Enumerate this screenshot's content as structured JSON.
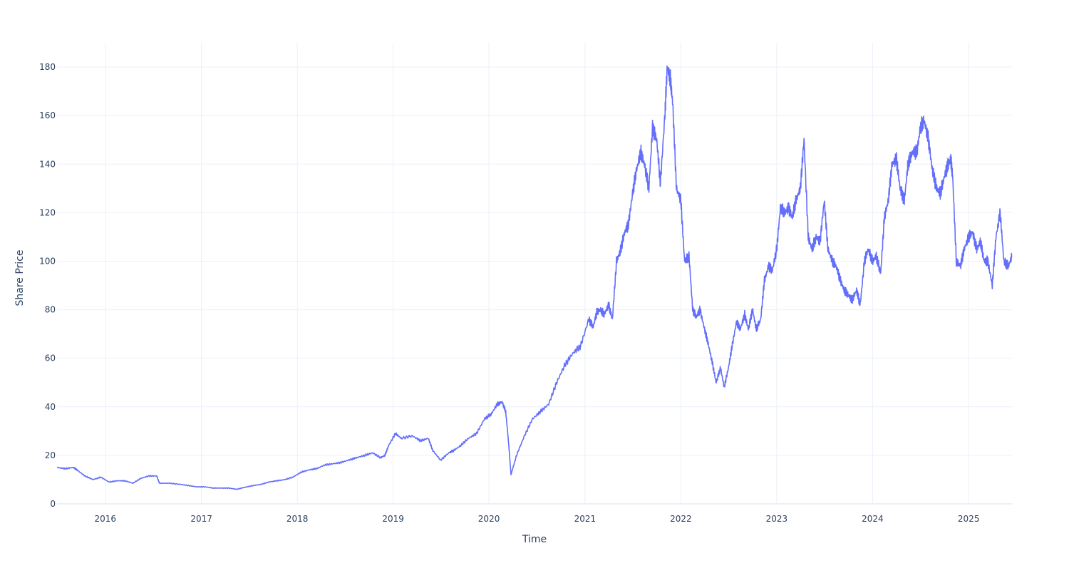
{
  "chart_data": {
    "type": "line",
    "title": "",
    "xlabel": "Time",
    "ylabel": "Share Price",
    "x_tick_labels": [
      "2016",
      "2017",
      "2018",
      "2019",
      "2020",
      "2021",
      "2022",
      "2023",
      "2024",
      "2025"
    ],
    "y_tick_labels": [
      "0",
      "20",
      "40",
      "60",
      "80",
      "100",
      "120",
      "140",
      "160",
      "180"
    ],
    "x_range": [
      "2015-07-01",
      "2025-06-15"
    ],
    "y_range": [
      -0.3,
      190
    ],
    "grid": true,
    "legend": "none",
    "colors": {
      "line": "#636efa",
      "grid": "#ebf0f8",
      "text": "#2a3f5f",
      "zeroline": "#ebf0f8"
    },
    "series": [
      {
        "x": [
          "2015-07-01",
          "2015-08-01",
          "2015-09-01",
          "2015-09-15",
          "2015-10-15",
          "2015-11-15",
          "2015-12-15",
          "2016-01-15",
          "2016-02-15",
          "2016-03-15",
          "2016-04-15",
          "2016-05-15",
          "2016-06-15",
          "2016-07-15",
          "2016-07-25",
          "2016-09-01",
          "2016-10-15",
          "2016-11-15",
          "2016-12-15",
          "2017-01-15",
          "2017-02-15",
          "2017-03-15",
          "2017-04-15",
          "2017-05-15",
          "2017-06-15",
          "2017-07-15",
          "2017-08-15",
          "2017-09-15",
          "2017-10-15",
          "2017-11-15",
          "2017-12-15",
          "2018-01-15",
          "2018-02-15",
          "2018-03-15",
          "2018-04-15",
          "2018-05-15",
          "2018-06-15",
          "2018-07-15",
          "2018-08-15",
          "2018-09-15",
          "2018-10-15",
          "2018-11-15",
          "2018-12-01",
          "2018-12-15",
          "2019-01-10",
          "2019-02-01",
          "2019-03-15",
          "2019-04-15",
          "2019-05-15",
          "2019-06-01",
          "2019-07-01",
          "2019-08-01",
          "2019-08-20",
          "2019-09-15",
          "2019-10-15",
          "2019-11-15",
          "2019-12-15",
          "2020-01-10",
          "2020-02-01",
          "2020-02-20",
          "2020-03-05",
          "2020-03-16",
          "2020-03-25",
          "2020-04-15",
          "2020-05-15",
          "2020-06-15",
          "2020-07-15",
          "2020-08-15",
          "2020-09-15",
          "2020-10-15",
          "2020-11-15",
          "2020-12-15",
          "2021-01-15",
          "2021-02-01",
          "2021-02-15",
          "2021-03-01",
          "2021-03-15",
          "2021-04-01",
          "2021-04-15",
          "2021-05-01",
          "2021-05-15",
          "2021-06-01",
          "2021-06-15",
          "2021-07-01",
          "2021-07-15",
          "2021-08-01",
          "2021-08-15",
          "2021-09-01",
          "2021-09-15",
          "2021-10-01",
          "2021-10-15",
          "2021-11-01",
          "2021-11-10",
          "2021-11-22",
          "2021-12-01",
          "2021-12-15",
          "2022-01-01",
          "2022-01-15",
          "2022-02-01",
          "2022-02-15",
          "2022-03-01",
          "2022-03-15",
          "2022-04-01",
          "2022-04-15",
          "2022-05-01",
          "2022-05-15",
          "2022-06-01",
          "2022-06-15",
          "2022-07-01",
          "2022-07-15",
          "2022-08-01",
          "2022-08-15",
          "2022-09-01",
          "2022-09-15",
          "2022-10-01",
          "2022-10-15",
          "2022-11-01",
          "2022-11-15",
          "2022-12-01",
          "2022-12-15",
          "2023-01-01",
          "2023-01-15",
          "2023-02-01",
          "2023-02-15",
          "2023-03-01",
          "2023-03-15",
          "2023-04-01",
          "2023-04-15",
          "2023-05-01",
          "2023-05-15",
          "2023-06-01",
          "2023-06-15",
          "2023-07-01",
          "2023-07-15",
          "2023-08-01",
          "2023-08-15",
          "2023-09-01",
          "2023-09-15",
          "2023-10-01",
          "2023-10-15",
          "2023-11-01",
          "2023-11-15",
          "2023-12-01",
          "2023-12-15",
          "2024-01-01",
          "2024-01-15",
          "2024-02-01",
          "2024-02-15",
          "2024-03-01",
          "2024-03-15",
          "2024-04-01",
          "2024-04-15",
          "2024-05-01",
          "2024-05-15",
          "2024-06-01",
          "2024-06-18",
          "2024-07-01",
          "2024-07-15",
          "2024-08-01",
          "2024-08-15",
          "2024-09-01",
          "2024-09-15",
          "2024-10-01",
          "2024-10-15",
          "2024-10-25",
          "2024-11-01",
          "2024-11-15",
          "2024-12-01",
          "2024-12-15",
          "2025-01-01",
          "2025-01-15",
          "2025-02-01",
          "2025-02-15",
          "2025-03-01",
          "2025-03-15",
          "2025-04-01",
          "2025-04-15",
          "2025-05-01",
          "2025-05-15",
          "2025-06-01",
          "2025-06-15"
        ],
        "y": [
          15,
          14.5,
          15,
          14,
          11.5,
          10,
          11,
          9,
          9.5,
          9.5,
          8.5,
          10.5,
          11.5,
          11.5,
          8.5,
          8.5,
          8,
          7.5,
          7,
          7,
          6.5,
          6.5,
          6.5,
          6,
          6.8,
          7.5,
          8,
          9,
          9.5,
          10,
          11,
          13,
          14,
          14.5,
          16,
          16.5,
          17,
          18,
          19,
          20,
          21,
          19,
          20,
          24,
          29,
          27,
          28,
          26,
          27,
          22,
          18,
          21,
          22,
          24,
          27,
          29,
          35,
          37,
          41,
          42,
          38,
          25,
          12,
          20,
          28,
          35,
          38,
          41,
          50,
          57,
          62,
          65,
          76,
          73,
          79,
          80,
          78,
          82,
          76,
          100,
          104,
          112,
          115,
          128,
          137,
          145,
          140,
          130,
          155,
          150,
          132,
          160,
          180,
          175,
          165,
          130,
          125,
          100,
          102,
          80,
          77,
          80,
          72,
          66,
          58,
          50,
          56,
          48,
          56,
          65,
          75,
          72,
          78,
          72,
          80,
          72,
          76,
          92,
          98,
          96,
          105,
          122,
          120,
          122,
          118,
          125,
          130,
          150,
          110,
          105,
          110,
          108,
          125,
          105,
          100,
          98,
          92,
          88,
          86,
          84,
          88,
          82,
          100,
          105,
          100,
          102,
          95,
          118,
          125,
          140,
          142,
          130,
          125,
          140,
          145,
          145,
          155,
          158,
          150,
          138,
          130,
          128,
          135,
          140,
          142,
          135,
          100,
          98,
          105,
          110,
          112,
          105,
          108,
          100,
          100,
          90,
          110,
          120,
          100,
          98,
          102
        ]
      }
    ]
  }
}
